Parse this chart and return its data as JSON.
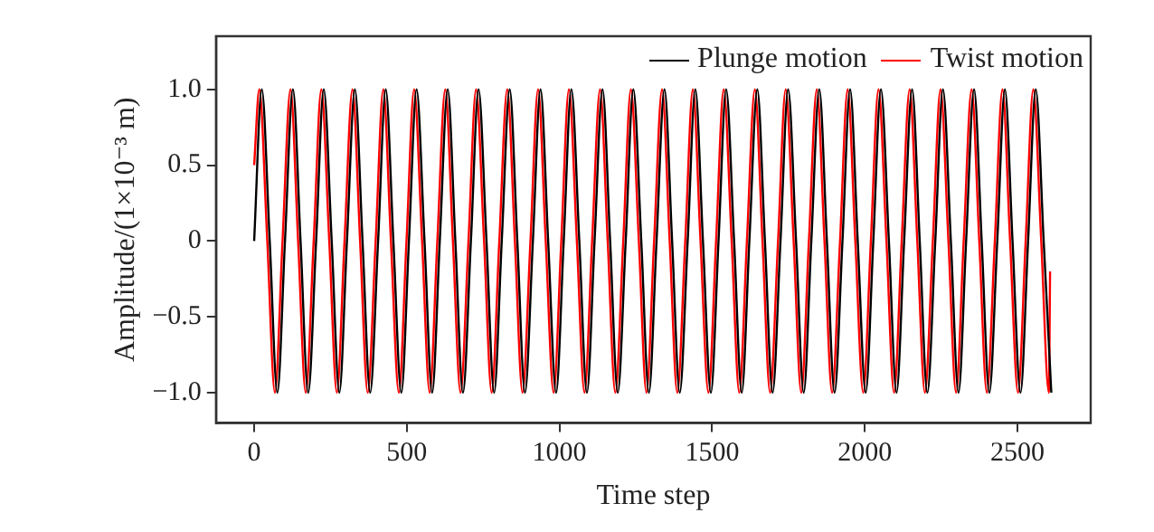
{
  "chart_data": {
    "type": "line",
    "xlabel": "Time step",
    "ylabel": "Amplitude/(1×10⁻³ m)",
    "xlim": [
      -125,
      2740
    ],
    "xticks": [
      0,
      500,
      1000,
      1500,
      2000,
      2500
    ],
    "ylim": [
      -1.2,
      1.35
    ],
    "yticks": [
      {
        "value": -1,
        "label": "−1.0"
      },
      {
        "value": -0.5,
        "label": "−0.5"
      },
      0,
      {
        "value": 0.5,
        "label": "0.5"
      },
      {
        "value": 1,
        "label": "1.0"
      }
    ],
    "grid": false,
    "legend": "top right",
    "marker": "none",
    "line_style": "solid",
    "series": [
      {
        "name": "Plunge motion",
        "color": "#000000",
        "x": [
          0,
          25,
          51,
          76,
          101,
          127,
          152,
          177,
          203,
          228,
          254,
          279,
          304,
          330,
          355,
          380,
          406,
          431,
          456,
          482,
          507,
          532,
          558,
          583,
          608,
          634,
          659,
          684,
          710,
          735,
          761,
          786,
          811,
          837,
          862,
          887,
          913,
          938,
          963,
          989,
          1014,
          1039,
          1065,
          1090,
          1115,
          1141,
          1166,
          1191,
          1217,
          1242,
          1268,
          1293,
          1318,
          1344,
          1369,
          1394,
          1420,
          1445,
          1470,
          1496,
          1521,
          1546,
          1572,
          1597,
          1622,
          1648,
          1673,
          1698,
          1724,
          1749,
          1775,
          1800,
          1825,
          1851,
          1876,
          1901,
          1927,
          1952,
          1977,
          2003,
          2028,
          2053,
          2079,
          2104,
          2129,
          2155,
          2180,
          2205,
          2231,
          2256,
          2282,
          2307,
          2332,
          2358,
          2383,
          2408,
          2434,
          2459,
          2484,
          2510,
          2535,
          2560,
          2586,
          2611
        ],
        "values": [
          0,
          1,
          0,
          -1,
          0,
          1,
          0,
          -1,
          0,
          1,
          0,
          -1,
          0,
          1,
          0,
          -1,
          0,
          1,
          0,
          -1,
          0,
          1,
          0,
          -1,
          0,
          1,
          0,
          -1,
          0,
          1,
          0,
          -1,
          0,
          1,
          0,
          -1,
          0,
          1,
          0,
          -1,
          0,
          1,
          0,
          -1,
          0,
          1,
          0,
          -1,
          0,
          1,
          0,
          -1,
          0,
          1,
          0,
          -1,
          0,
          1,
          0,
          -1,
          0,
          1,
          0,
          -1,
          0,
          1,
          0,
          -1,
          0,
          1,
          0,
          -1,
          0,
          1,
          0,
          -1,
          0,
          1,
          0,
          -1,
          0,
          1,
          0,
          -1,
          0,
          1,
          0,
          -1,
          0,
          1,
          0,
          -1,
          0,
          1,
          0,
          -1,
          0,
          1,
          0,
          -1,
          0,
          1,
          0,
          -1
        ]
      },
      {
        "name": "Twist motion",
        "color": "#ff0000",
        "x": [
          0,
          17,
          43,
          68,
          93,
          119,
          144,
          169,
          195,
          220,
          246,
          271,
          296,
          322,
          347,
          372,
          398,
          423,
          448,
          474,
          499,
          524,
          550,
          575,
          600,
          626,
          651,
          676,
          702,
          727,
          753,
          778,
          803,
          829,
          854,
          879,
          905,
          930,
          955,
          981,
          1006,
          1031,
          1057,
          1082,
          1107,
          1133,
          1158,
          1183,
          1209,
          1234,
          1260,
          1285,
          1310,
          1336,
          1361,
          1386,
          1412,
          1437,
          1462,
          1488,
          1513,
          1538,
          1564,
          1589,
          1614,
          1640,
          1665,
          1690,
          1716,
          1741,
          1767,
          1792,
          1817,
          1843,
          1868,
          1893,
          1919,
          1944,
          1969,
          1995,
          2020,
          2045,
          2071,
          2096,
          2121,
          2147,
          2172,
          2197,
          2223,
          2248,
          2274,
          2299,
          2324,
          2350,
          2375,
          2400,
          2426,
          2451,
          2476,
          2502,
          2527,
          2552,
          2578,
          2603,
          2607
        ],
        "values": [
          0.5,
          1,
          0,
          -1,
          0,
          1,
          0,
          -1,
          0,
          1,
          0,
          -1,
          0,
          1,
          0,
          -1,
          0,
          1,
          0,
          -1,
          0,
          1,
          0,
          -1,
          0,
          1,
          0,
          -1,
          0,
          1,
          0,
          -1,
          0,
          1,
          0,
          -1,
          0,
          1,
          0,
          -1,
          0,
          1,
          0,
          -1,
          0,
          1,
          0,
          -1,
          0,
          1,
          0,
          -1,
          0,
          1,
          0,
          -1,
          0,
          1,
          0,
          -1,
          0,
          1,
          0,
          -1,
          0,
          1,
          0,
          -1,
          0,
          1,
          0,
          -1,
          0,
          1,
          0,
          -1,
          0,
          1,
          0,
          -1,
          0,
          1,
          0,
          -1,
          0,
          1,
          0,
          -1,
          0,
          1,
          0,
          -1,
          0,
          1,
          0,
          -1,
          0,
          1,
          0,
          -1,
          0,
          1,
          0,
          -1,
          -0.2
        ]
      }
    ]
  }
}
